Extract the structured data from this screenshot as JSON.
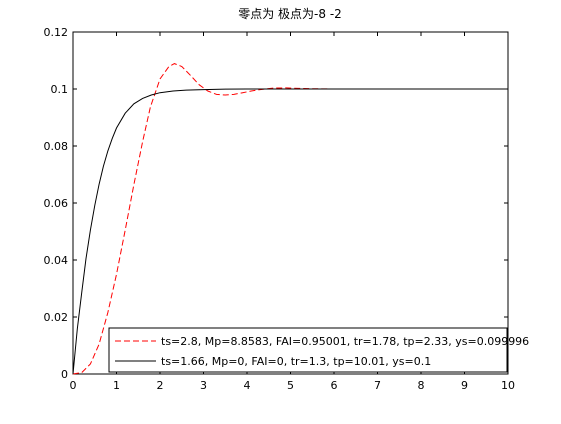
{
  "chart_data": {
    "type": "line",
    "title": "零点为  极点为-8 -2",
    "xlabel": "",
    "ylabel": "",
    "xlim": [
      0,
      10
    ],
    "ylim": [
      0,
      0.12
    ],
    "x_ticks": [
      "0",
      "1",
      "2",
      "3",
      "4",
      "5",
      "6",
      "7",
      "8",
      "9",
      "10"
    ],
    "y_ticks": [
      "0",
      "0.02",
      "0.04",
      "0.06",
      "0.08",
      "0.1",
      "0.12"
    ],
    "grid": false,
    "legend_position": "bottom-right",
    "series": [
      {
        "name": "ts=2.8,  Mp=8.8583, FAI=0.95001, tr=1.78, tp=2.33, ys=0.099996",
        "color": "#ff0000",
        "line_style": "dashed",
        "x": [
          0,
          0.2,
          0.4,
          0.6,
          0.8,
          1.0,
          1.2,
          1.4,
          1.6,
          1.78,
          2.0,
          2.2,
          2.33,
          2.5,
          2.7,
          2.9,
          3.1,
          3.3,
          3.5,
          3.7,
          3.9,
          4.1,
          4.3,
          4.6,
          4.9,
          5.2,
          5.5,
          6.0,
          6.5,
          8.0,
          9.6
        ],
        "y": [
          0,
          0.0005,
          0.0035,
          0.0105,
          0.0215,
          0.035,
          0.0505,
          0.0665,
          0.0815,
          0.0937,
          0.1035,
          0.1078,
          0.1089,
          0.1079,
          0.1048,
          0.1015,
          0.0993,
          0.0981,
          0.0979,
          0.0981,
          0.0987,
          0.0993,
          0.0998,
          0.1003,
          0.1004,
          0.1002,
          0.1001,
          0.1,
          0.1,
          0.1,
          0.1
        ]
      },
      {
        "name": "ts=1.66,  Mp=0, FAI=0, tr=1.3, tp=10.01, ys=0.1",
        "color": "#000000",
        "line_style": "solid",
        "x": [
          0,
          0.1,
          0.2,
          0.3,
          0.4,
          0.5,
          0.6,
          0.7,
          0.8,
          0.9,
          1.0,
          1.2,
          1.4,
          1.6,
          1.8,
          2.0,
          2.3,
          2.6,
          3.0,
          3.5,
          4.0,
          5.0,
          6.0,
          8.0,
          10.0
        ],
        "y": [
          0,
          0.0158,
          0.0285,
          0.0405,
          0.0505,
          0.0592,
          0.0666,
          0.0729,
          0.0782,
          0.0826,
          0.0863,
          0.0915,
          0.0948,
          0.0967,
          0.0979,
          0.0987,
          0.0993,
          0.0996,
          0.0998,
          0.09995,
          0.1,
          0.1,
          0.1,
          0.1,
          0.1
        ]
      }
    ]
  }
}
